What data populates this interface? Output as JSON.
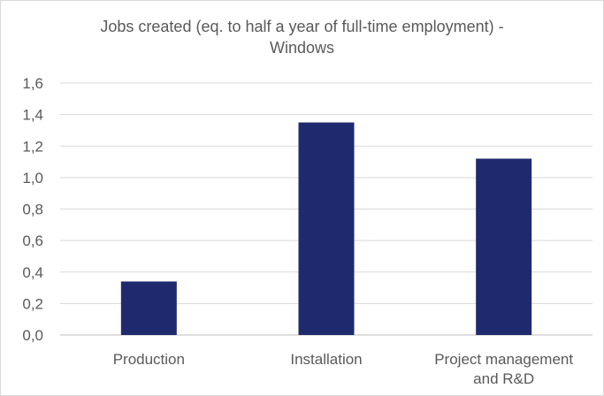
{
  "chart_data": {
    "type": "bar",
    "title_line1": "Jobs created (eq. to half a year of full-time employment) -",
    "title_line2": "Windows",
    "categories": [
      [
        "Production"
      ],
      [
        "Installation"
      ],
      [
        "Project management",
        "and R&D"
      ]
    ],
    "values": [
      0.34,
      1.35,
      1.12
    ],
    "ylim": [
      0,
      1.6
    ],
    "yticks": [
      0.0,
      0.2,
      0.4,
      0.6,
      0.8,
      1.0,
      1.2,
      1.4,
      1.6
    ],
    "ytick_labels": [
      "0,0",
      "0,2",
      "0,4",
      "0,6",
      "0,8",
      "1,0",
      "1,2",
      "1,4",
      "1,6"
    ],
    "grid": true,
    "legend": "none",
    "colors": {
      "bar": "#1f2a6e",
      "grid": "#d9d9d9",
      "text": "#595959"
    }
  }
}
